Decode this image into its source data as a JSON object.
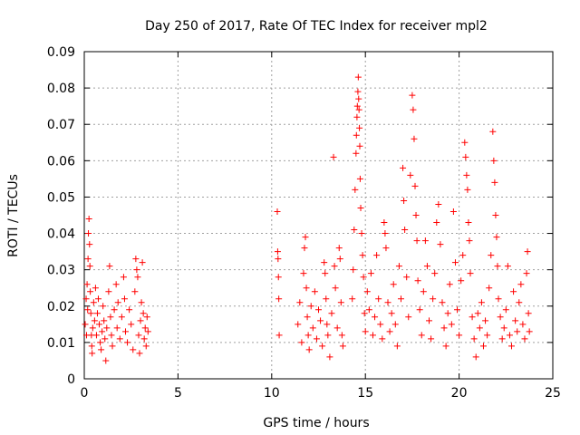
{
  "chart_data": {
    "type": "scatter",
    "title": "Day 250 of 2017, Rate Of TEC Index for receiver mpl2",
    "xlabel": "GPS time / hours",
    "ylabel": "ROTI / TECUs",
    "xlim": [
      0,
      25
    ],
    "ylim": [
      0,
      0.09
    ],
    "xticks": [
      "0",
      "5",
      "10",
      "15",
      "20",
      "25"
    ],
    "yticks": [
      "0",
      "0.01",
      "0.02",
      "0.03",
      "0.04",
      "0.05",
      "0.06",
      "0.07",
      "0.08",
      "0.09"
    ],
    "grid": true,
    "marker": "plus",
    "color": "#ff0000",
    "series": [
      {
        "name": "",
        "points": [
          [
            0.05,
            0.015
          ],
          [
            0.1,
            0.022
          ],
          [
            0.12,
            0.012
          ],
          [
            0.15,
            0.026
          ],
          [
            0.18,
            0.019
          ],
          [
            0.2,
            0.033
          ],
          [
            0.22,
            0.04
          ],
          [
            0.25,
            0.044
          ],
          [
            0.28,
            0.037
          ],
          [
            0.3,
            0.031
          ],
          [
            0.32,
            0.024
          ],
          [
            0.35,
            0.018
          ],
          [
            0.38,
            0.012
          ],
          [
            0.4,
            0.009
          ],
          [
            0.42,
            0.007
          ],
          [
            0.45,
            0.014
          ],
          [
            0.5,
            0.021
          ],
          [
            0.55,
            0.016
          ],
          [
            0.6,
            0.025
          ],
          [
            0.65,
            0.012
          ],
          [
            0.7,
            0.018
          ],
          [
            0.75,
            0.022
          ],
          [
            0.8,
            0.015
          ],
          [
            0.85,
            0.01
          ],
          [
            0.9,
            0.008
          ],
          [
            0.95,
            0.013
          ],
          [
            1.0,
            0.02
          ],
          [
            1.05,
            0.016
          ],
          [
            1.1,
            0.011
          ],
          [
            1.15,
            0.005
          ],
          [
            1.2,
            0.014
          ],
          [
            1.3,
            0.024
          ],
          [
            1.35,
            0.031
          ],
          [
            1.4,
            0.017
          ],
          [
            1.45,
            0.012
          ],
          [
            1.5,
            0.009
          ],
          [
            1.6,
            0.019
          ],
          [
            1.7,
            0.026
          ],
          [
            1.75,
            0.014
          ],
          [
            1.8,
            0.021
          ],
          [
            1.9,
            0.011
          ],
          [
            2.0,
            0.017
          ],
          [
            2.1,
            0.028
          ],
          [
            2.15,
            0.022
          ],
          [
            2.2,
            0.013
          ],
          [
            2.3,
            0.01
          ],
          [
            2.4,
            0.019
          ],
          [
            2.5,
            0.015
          ],
          [
            2.6,
            0.008
          ],
          [
            2.7,
            0.024
          ],
          [
            2.75,
            0.033
          ],
          [
            2.8,
            0.03
          ],
          [
            2.85,
            0.028
          ],
          [
            2.9,
            0.012
          ],
          [
            2.95,
            0.007
          ],
          [
            3.0,
            0.016
          ],
          [
            3.05,
            0.021
          ],
          [
            3.1,
            0.032
          ],
          [
            3.15,
            0.018
          ],
          [
            3.2,
            0.011
          ],
          [
            3.25,
            0.014
          ],
          [
            3.3,
            0.009
          ],
          [
            3.35,
            0.017
          ],
          [
            3.4,
            0.013
          ],
          [
            10.3,
            0.046
          ],
          [
            10.32,
            0.035
          ],
          [
            10.34,
            0.033
          ],
          [
            10.36,
            0.028
          ],
          [
            10.38,
            0.022
          ],
          [
            10.4,
            0.012
          ],
          [
            11.4,
            0.015
          ],
          [
            11.5,
            0.021
          ],
          [
            11.6,
            0.01
          ],
          [
            11.7,
            0.029
          ],
          [
            11.75,
            0.036
          ],
          [
            11.8,
            0.039
          ],
          [
            11.85,
            0.025
          ],
          [
            11.9,
            0.017
          ],
          [
            11.95,
            0.012
          ],
          [
            12.0,
            0.008
          ],
          [
            12.1,
            0.02
          ],
          [
            12.2,
            0.014
          ],
          [
            12.3,
            0.024
          ],
          [
            12.4,
            0.011
          ],
          [
            12.5,
            0.019
          ],
          [
            12.6,
            0.016
          ],
          [
            12.7,
            0.009
          ],
          [
            12.8,
            0.032
          ],
          [
            12.85,
            0.029
          ],
          [
            12.9,
            0.022
          ],
          [
            12.95,
            0.015
          ],
          [
            13.0,
            0.012
          ],
          [
            13.1,
            0.006
          ],
          [
            13.2,
            0.018
          ],
          [
            13.3,
            0.061
          ],
          [
            13.35,
            0.031
          ],
          [
            13.4,
            0.025
          ],
          [
            13.5,
            0.014
          ],
          [
            13.6,
            0.036
          ],
          [
            13.65,
            0.033
          ],
          [
            13.7,
            0.021
          ],
          [
            13.75,
            0.012
          ],
          [
            13.8,
            0.009
          ],
          [
            14.3,
            0.022
          ],
          [
            14.35,
            0.03
          ],
          [
            14.4,
            0.041
          ],
          [
            14.45,
            0.052
          ],
          [
            14.5,
            0.062
          ],
          [
            14.52,
            0.067
          ],
          [
            14.55,
            0.072
          ],
          [
            14.57,
            0.075
          ],
          [
            14.6,
            0.079
          ],
          [
            14.62,
            0.083
          ],
          [
            14.64,
            0.077
          ],
          [
            14.66,
            0.074
          ],
          [
            14.68,
            0.069
          ],
          [
            14.7,
            0.064
          ],
          [
            14.72,
            0.055
          ],
          [
            14.75,
            0.047
          ],
          [
            14.8,
            0.04
          ],
          [
            14.85,
            0.034
          ],
          [
            14.9,
            0.028
          ],
          [
            14.95,
            0.018
          ],
          [
            15.0,
            0.013
          ],
          [
            15.1,
            0.024
          ],
          [
            15.2,
            0.019
          ],
          [
            15.3,
            0.029
          ],
          [
            15.4,
            0.012
          ],
          [
            15.5,
            0.017
          ],
          [
            15.6,
            0.034
          ],
          [
            15.7,
            0.022
          ],
          [
            15.8,
            0.015
          ],
          [
            15.9,
            0.011
          ],
          [
            16.0,
            0.043
          ],
          [
            16.05,
            0.04
          ],
          [
            16.1,
            0.036
          ],
          [
            16.2,
            0.021
          ],
          [
            16.3,
            0.013
          ],
          [
            16.4,
            0.018
          ],
          [
            16.5,
            0.026
          ],
          [
            16.6,
            0.015
          ],
          [
            16.7,
            0.009
          ],
          [
            16.8,
            0.031
          ],
          [
            16.9,
            0.022
          ],
          [
            17.0,
            0.058
          ],
          [
            17.05,
            0.049
          ],
          [
            17.1,
            0.041
          ],
          [
            17.2,
            0.028
          ],
          [
            17.3,
            0.017
          ],
          [
            17.4,
            0.056
          ],
          [
            17.5,
            0.078
          ],
          [
            17.55,
            0.074
          ],
          [
            17.6,
            0.066
          ],
          [
            17.65,
            0.053
          ],
          [
            17.7,
            0.045
          ],
          [
            17.75,
            0.038
          ],
          [
            17.8,
            0.027
          ],
          [
            17.9,
            0.019
          ],
          [
            18.0,
            0.012
          ],
          [
            18.1,
            0.024
          ],
          [
            18.2,
            0.038
          ],
          [
            18.3,
            0.031
          ],
          [
            18.4,
            0.016
          ],
          [
            18.5,
            0.011
          ],
          [
            18.6,
            0.022
          ],
          [
            18.7,
            0.029
          ],
          [
            18.8,
            0.043
          ],
          [
            18.9,
            0.048
          ],
          [
            19.0,
            0.037
          ],
          [
            19.1,
            0.021
          ],
          [
            19.2,
            0.014
          ],
          [
            19.3,
            0.009
          ],
          [
            19.4,
            0.018
          ],
          [
            19.5,
            0.026
          ],
          [
            19.6,
            0.015
          ],
          [
            19.7,
            0.046
          ],
          [
            19.8,
            0.032
          ],
          [
            19.9,
            0.019
          ],
          [
            20.0,
            0.012
          ],
          [
            20.1,
            0.027
          ],
          [
            20.2,
            0.034
          ],
          [
            20.3,
            0.065
          ],
          [
            20.35,
            0.061
          ],
          [
            20.4,
            0.056
          ],
          [
            20.45,
            0.052
          ],
          [
            20.5,
            0.043
          ],
          [
            20.55,
            0.038
          ],
          [
            20.6,
            0.029
          ],
          [
            20.7,
            0.017
          ],
          [
            20.8,
            0.011
          ],
          [
            20.9,
            0.006
          ],
          [
            21.0,
            0.018
          ],
          [
            21.1,
            0.014
          ],
          [
            21.2,
            0.021
          ],
          [
            21.3,
            0.009
          ],
          [
            21.4,
            0.016
          ],
          [
            21.5,
            0.012
          ],
          [
            21.6,
            0.025
          ],
          [
            21.7,
            0.034
          ],
          [
            21.8,
            0.068
          ],
          [
            21.85,
            0.06
          ],
          [
            21.9,
            0.054
          ],
          [
            21.95,
            0.045
          ],
          [
            22.0,
            0.039
          ],
          [
            22.05,
            0.031
          ],
          [
            22.1,
            0.022
          ],
          [
            22.2,
            0.017
          ],
          [
            22.3,
            0.011
          ],
          [
            22.4,
            0.014
          ],
          [
            22.5,
            0.019
          ],
          [
            22.6,
            0.031
          ],
          [
            22.7,
            0.012
          ],
          [
            22.8,
            0.009
          ],
          [
            22.9,
            0.024
          ],
          [
            23.0,
            0.016
          ],
          [
            23.1,
            0.013
          ],
          [
            23.2,
            0.021
          ],
          [
            23.3,
            0.026
          ],
          [
            23.4,
            0.015
          ],
          [
            23.5,
            0.011
          ],
          [
            23.6,
            0.029
          ],
          [
            23.65,
            0.035
          ],
          [
            23.7,
            0.018
          ],
          [
            23.75,
            0.013
          ]
        ]
      }
    ]
  }
}
